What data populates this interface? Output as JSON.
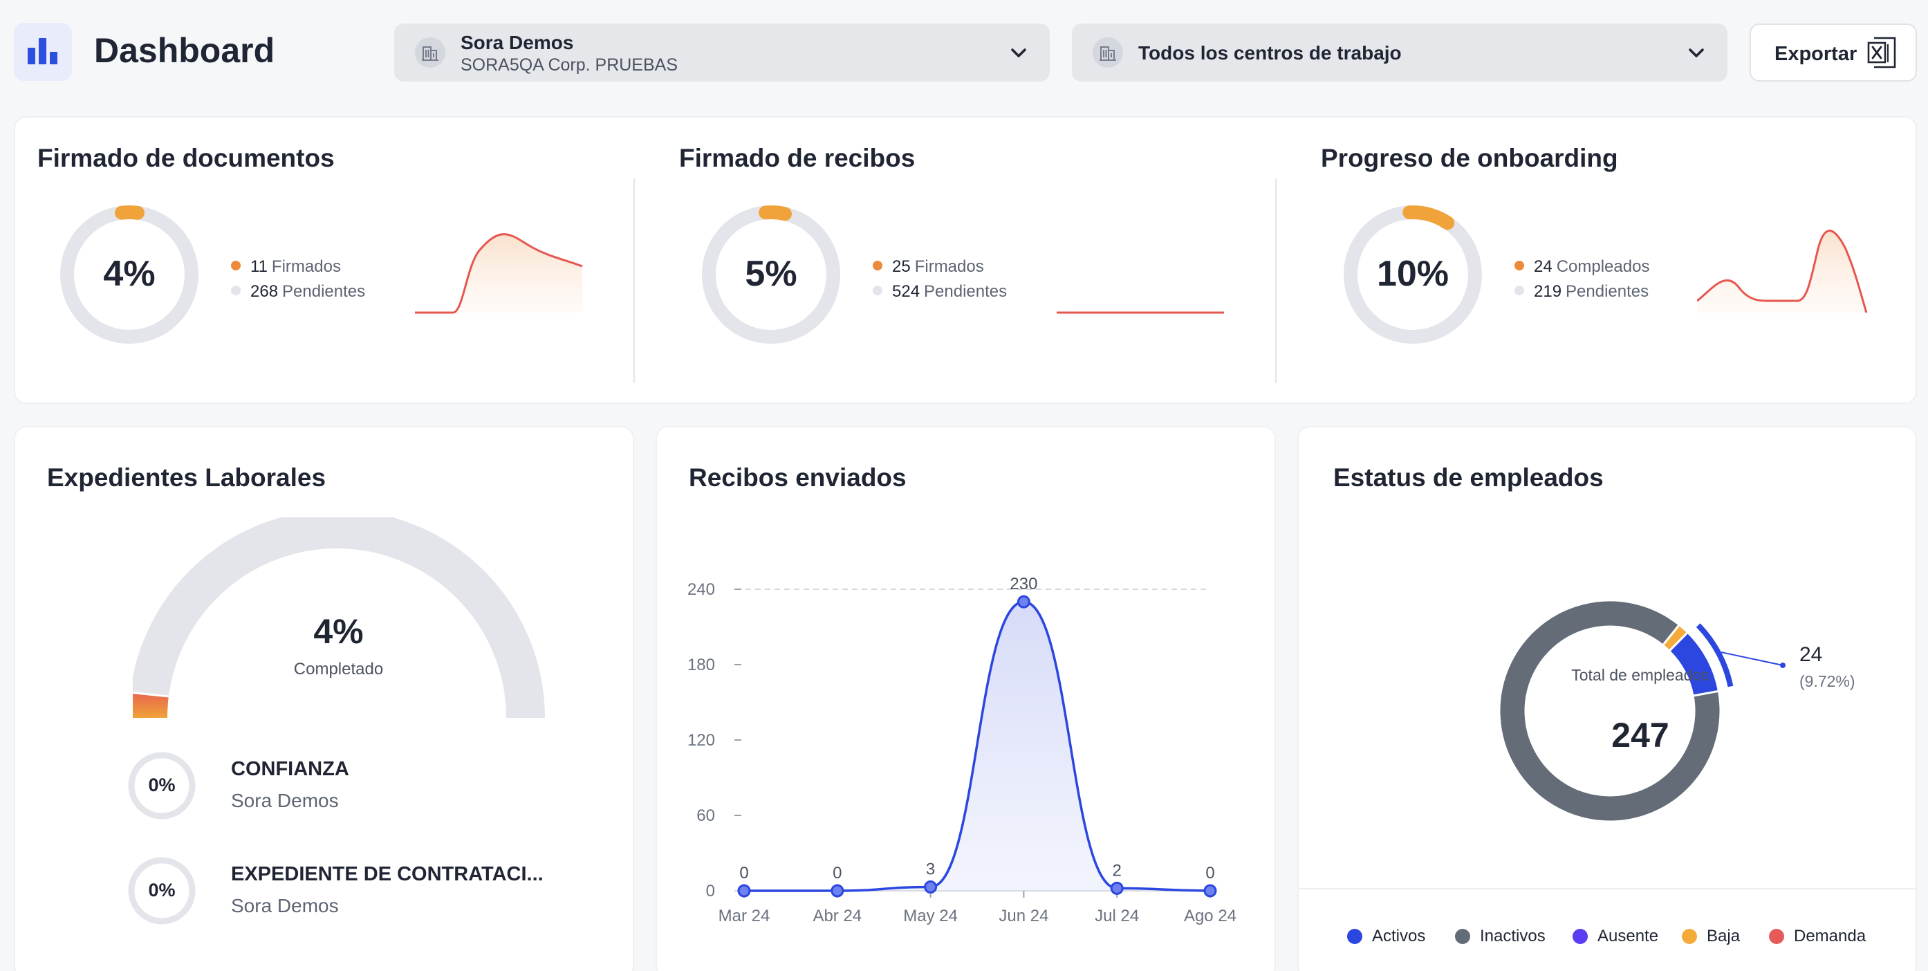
{
  "header": {
    "title": "Dashboard",
    "logo_icon": "bar-chart-logo-icon",
    "company_select": {
      "name": "Sora Demos",
      "subtitle": "SORA5QA Corp. PRUEBAS",
      "icon": "building-icon"
    },
    "center_select": {
      "value": "Todos los centros de trabajo",
      "icon": "building-icon"
    },
    "export_button": {
      "label": "Exportar",
      "icon": "excel-icon"
    }
  },
  "summary": [
    {
      "title": "Firmado de documentos",
      "percent_label": "4%",
      "percent": 4,
      "done_count": "11",
      "done_label": "Firmados",
      "pending_count": "268",
      "pending_label": "Pendientes"
    },
    {
      "title": "Firmado de recibos",
      "percent_label": "5%",
      "percent": 5,
      "done_count": "25",
      "done_label": "Firmados",
      "pending_count": "524",
      "pending_label": "Pendientes"
    },
    {
      "title": "Progreso de onboarding",
      "percent_label": "10%",
      "percent": 10,
      "done_count": "24",
      "done_label": "Compleados",
      "pending_count": "219",
      "pending_label": "Pendientes"
    }
  ],
  "expedientes": {
    "title": "Expedientes Laborales",
    "gauge_percent_label": "4%",
    "gauge_percent": 4,
    "gauge_sub": "Completado",
    "items": [
      {
        "percent_label": "0%",
        "name": "CONFIANZA",
        "org": "Sora Demos"
      },
      {
        "percent_label": "0%",
        "name": "EXPEDIENTE DE CONTRATACI...",
        "org": "Sora Demos"
      }
    ]
  },
  "recibos": {
    "title": "Recibos enviados"
  },
  "empleados": {
    "title": "Estatus de empleados",
    "center_label": "Total de empleados",
    "total": "247",
    "callout_value": "24",
    "callout_percent": "(9.72%)",
    "legend": [
      {
        "label": "Activos",
        "color": "#2c47e0"
      },
      {
        "label": "Inactivos",
        "color": "#646c77"
      },
      {
        "label": "Ausente",
        "color": "#5a3df2"
      },
      {
        "label": "Baja",
        "color": "#f4ab3a"
      },
      {
        "label": "Demanda",
        "color": "#e75a5a"
      }
    ]
  },
  "colors": {
    "accent": "#2c47e0",
    "orange": "#f0a33a",
    "red_line": "#e5574f",
    "track": "#e3e5ea"
  },
  "chart_data": [
    {
      "type": "area",
      "title": "Recibos enviados",
      "categories": [
        "Mar 24",
        "Abr 24",
        "May 24",
        "Jun 24",
        "Jul 24",
        "Ago 24"
      ],
      "values": [
        0,
        0,
        3,
        230,
        2,
        0
      ],
      "yticks": [
        0,
        60,
        120,
        180,
        240
      ],
      "ylim": [
        0,
        240
      ]
    },
    {
      "type": "pie",
      "title": "Estatus de empleados",
      "labels": [
        "Activos",
        "Inactivos",
        "Baja"
      ],
      "values": [
        24,
        219,
        4
      ]
    }
  ]
}
